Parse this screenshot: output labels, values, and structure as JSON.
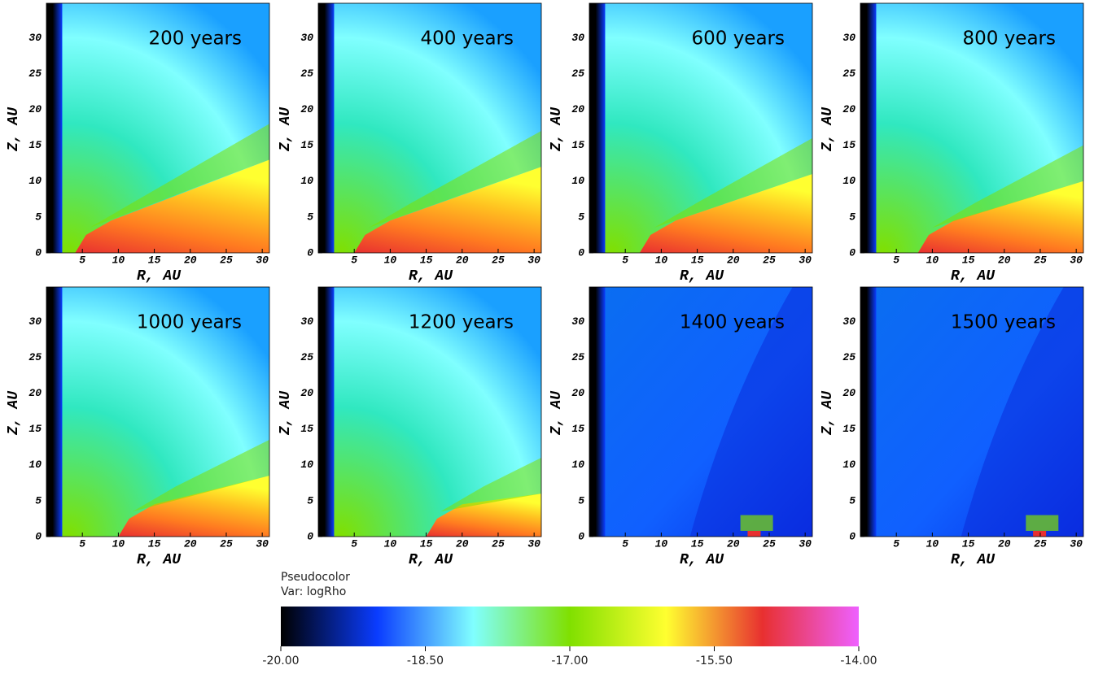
{
  "chart_data": [
    {
      "type": "heatmap",
      "title": "200 years",
      "xlabel": "R, AU",
      "ylabel": "Z, AU",
      "xlim": [
        0,
        31
      ],
      "ylim": [
        0,
        34.8
      ],
      "xticks": [
        5,
        10,
        15,
        20,
        25,
        30
      ],
      "yticks": [
        0,
        5,
        10,
        15,
        20,
        25,
        30
      ]
    },
    {
      "type": "heatmap",
      "title": "400 years",
      "xlabel": "R, AU",
      "ylabel": "Z, AU",
      "xlim": [
        0,
        31
      ],
      "ylim": [
        0,
        34.8
      ],
      "xticks": [
        5,
        10,
        15,
        20,
        25,
        30
      ],
      "yticks": [
        0,
        5,
        10,
        15,
        20,
        25,
        30
      ]
    },
    {
      "type": "heatmap",
      "title": "600 years",
      "xlabel": "R, AU",
      "ylabel": "Z, AU",
      "xlim": [
        0,
        31
      ],
      "ylim": [
        0,
        34.8
      ],
      "xticks": [
        5,
        10,
        15,
        20,
        25,
        30
      ],
      "yticks": [
        0,
        5,
        10,
        15,
        20,
        25,
        30
      ]
    },
    {
      "type": "heatmap",
      "title": "800 years",
      "xlabel": "R, AU",
      "ylabel": "Z, AU",
      "xlim": [
        0,
        31
      ],
      "ylim": [
        0,
        34.8
      ],
      "xticks": [
        5,
        10,
        15,
        20,
        25,
        30
      ],
      "yticks": [
        0,
        5,
        10,
        15,
        20,
        25,
        30
      ]
    },
    {
      "type": "heatmap",
      "title": "1000 years",
      "xlabel": "R, AU",
      "ylabel": "Z, AU",
      "xlim": [
        0,
        31
      ],
      "ylim": [
        0,
        34.8
      ],
      "xticks": [
        5,
        10,
        15,
        20,
        25,
        30
      ],
      "yticks": [
        0,
        5,
        10,
        15,
        20,
        25,
        30
      ]
    },
    {
      "type": "heatmap",
      "title": "1200 years",
      "xlabel": "R, AU",
      "ylabel": "Z, AU",
      "xlim": [
        0,
        31
      ],
      "ylim": [
        0,
        34.8
      ],
      "xticks": [
        5,
        10,
        15,
        20,
        25,
        30
      ],
      "yticks": [
        0,
        5,
        10,
        15,
        20,
        25,
        30
      ]
    },
    {
      "type": "heatmap",
      "title": "1400 years",
      "xlabel": "R, AU",
      "ylabel": "Z, AU",
      "xlim": [
        0,
        31
      ],
      "ylim": [
        0,
        34.8
      ],
      "xticks": [
        5,
        10,
        15,
        20,
        25,
        30
      ],
      "yticks": [
        0,
        5,
        10,
        15,
        20,
        25,
        30
      ]
    },
    {
      "type": "heatmap",
      "title": "1500 years",
      "xlabel": "R, AU",
      "ylabel": "Z, AU",
      "xlim": [
        0,
        31
      ],
      "ylim": [
        0,
        34.8
      ],
      "xticks": [
        5,
        10,
        15,
        20,
        25,
        30
      ],
      "yticks": [
        0,
        5,
        10,
        15,
        20,
        25,
        30
      ]
    },
    {
      "type": "colorbar",
      "title": "Pseudocolor",
      "subtitle": "Var: logRho",
      "xlim": [
        -20,
        -14
      ],
      "xticks": [
        {
          "value": -20,
          "label": "-20.00"
        },
        {
          "value": -18.5,
          "label": "-18.50"
        },
        {
          "value": -17,
          "label": "-17.00"
        },
        {
          "value": -15.5,
          "label": "-15.50"
        },
        {
          "value": -14,
          "label": "-14.00"
        }
      ],
      "colors": [
        "#000000",
        "#0a3cff",
        "#80ffff",
        "#80e000",
        "#ffff30",
        "#e83030",
        "#ee60ff"
      ]
    }
  ]
}
